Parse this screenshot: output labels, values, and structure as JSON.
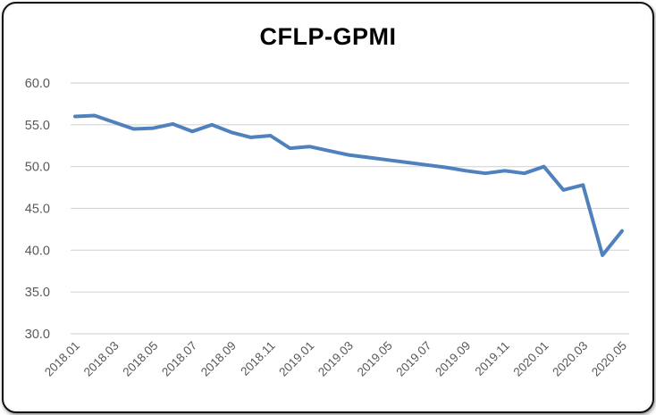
{
  "window": {
    "background_color": "#ffffff",
    "card_border_color": "#111111"
  },
  "chart_data": {
    "type": "line",
    "title": "CFLP-GPMI",
    "series_name": "CFLP-GPMI",
    "x": [
      "2018.01",
      "2018.02",
      "2018.03",
      "2018.04",
      "2018.05",
      "2018.06",
      "2018.07",
      "2018.08",
      "2018.09",
      "2018.10",
      "2018.11",
      "2018.12",
      "2019.01",
      "2019.02",
      "2019.03",
      "2019.04",
      "2019.05",
      "2019.06",
      "2019.07",
      "2019.08",
      "2019.09",
      "2019.10",
      "2019.11",
      "2019.12",
      "2020.01",
      "2020.02",
      "2020.03",
      "2020.04",
      "2020.05"
    ],
    "values": [
      56.0,
      56.1,
      55.3,
      54.5,
      54.6,
      55.1,
      54.2,
      55.0,
      54.1,
      53.5,
      53.7,
      52.2,
      52.4,
      51.9,
      51.4,
      51.1,
      50.8,
      50.5,
      50.2,
      49.9,
      49.5,
      49.2,
      49.5,
      49.2,
      50.0,
      47.2,
      47.8,
      39.4,
      42.3
    ],
    "x_tick_labels_shown": [
      "2018.01",
      "2018.03",
      "2018.05",
      "2018.07",
      "2018.09",
      "2018.11",
      "2019.01",
      "2019.03",
      "2019.05",
      "2019.07",
      "2019.09",
      "2019.11",
      "2020.01",
      "2020.03",
      "2020.05"
    ],
    "x_label_interval": 2,
    "ylim": [
      30,
      60
    ],
    "ytick_step": 5,
    "ytick_labels": [
      "60.0",
      "55.0",
      "50.0",
      "45.0",
      "40.0",
      "35.0",
      "30.0"
    ],
    "xlabel": "",
    "ylabel": "",
    "grid": "horizontal",
    "legend": "none",
    "line_color": "#4F81BD",
    "line_width": 4,
    "gridline_color": "#D6D6D6",
    "tick_label_color": "#595959",
    "title_color": "#000000"
  }
}
